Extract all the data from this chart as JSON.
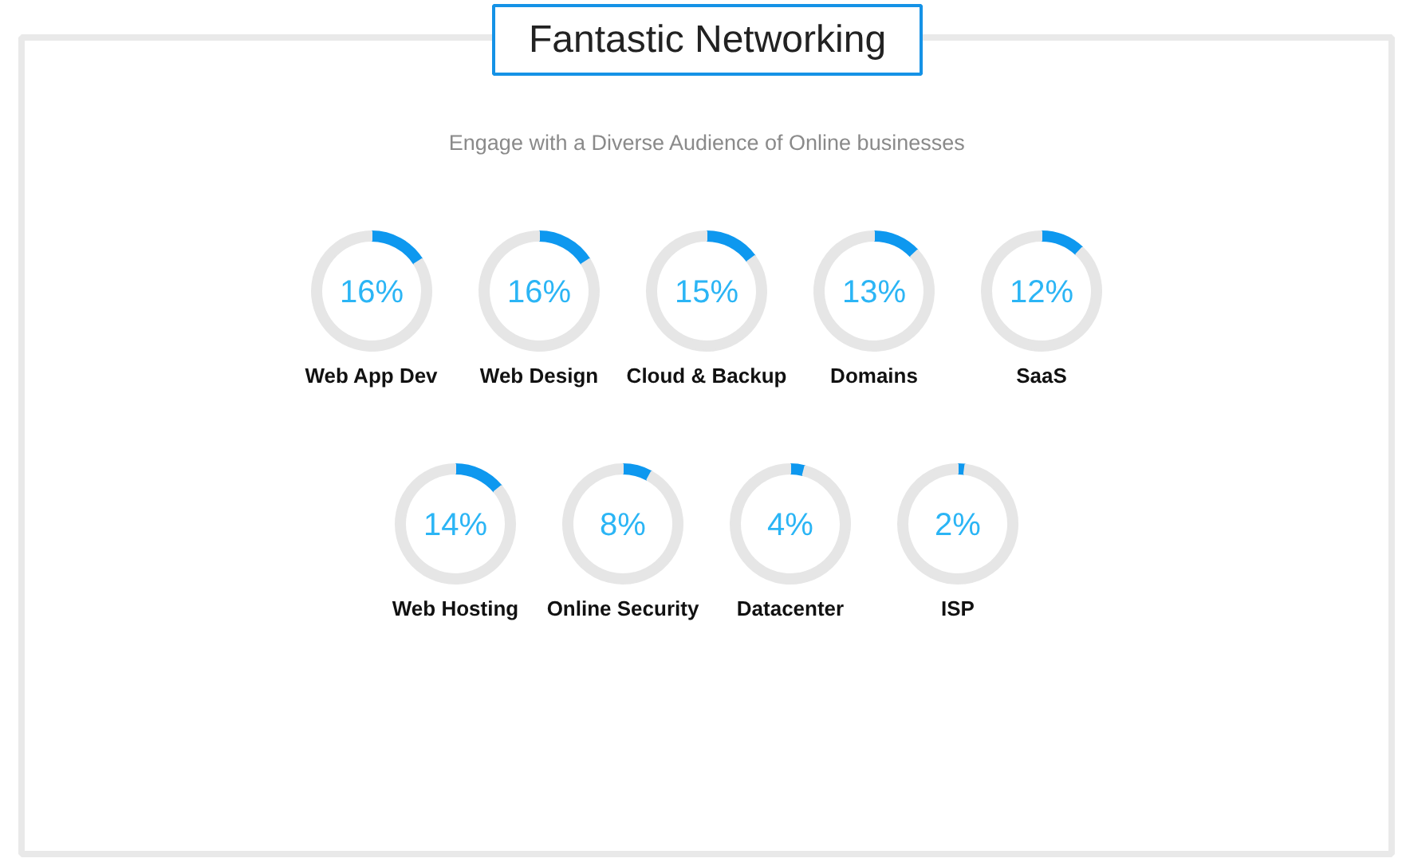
{
  "chart_data": [
    {
      "type": "other",
      "title": "Fantastic Networking",
      "subtitle": "Engage with a Diverse Audience of Online businesses"
    },
    {
      "type": "donut",
      "title": "Web App Dev",
      "categories": [
        null,
        null
      ],
      "values": [
        16,
        84
      ],
      "colors": [
        "#0e98ef",
        "#e6e6e6"
      ],
      "annotations": [
        "16%"
      ]
    },
    {
      "type": "donut",
      "title": "Web Design",
      "categories": [
        null,
        null
      ],
      "values": [
        16,
        84
      ],
      "colors": [
        "#0e98ef",
        "#e6e6e6"
      ],
      "annotations": [
        "16%"
      ]
    },
    {
      "type": "donut",
      "title": "Cloud & Backup",
      "categories": [
        null,
        null
      ],
      "values": [
        15,
        85
      ],
      "colors": [
        "#0e98ef",
        "#e6e6e6"
      ],
      "annotations": [
        "15%"
      ]
    },
    {
      "type": "donut",
      "title": "Domains",
      "categories": [
        null,
        null
      ],
      "values": [
        13,
        87
      ],
      "colors": [
        "#0e98ef",
        "#e6e6e6"
      ],
      "annotations": [
        "13%"
      ]
    },
    {
      "type": "donut",
      "title": "SaaS",
      "categories": [
        null,
        null
      ],
      "values": [
        12,
        88
      ],
      "colors": [
        "#0e98ef",
        "#e6e6e6"
      ],
      "annotations": [
        "12%"
      ]
    },
    {
      "type": "donut",
      "title": "Web Hosting",
      "categories": [
        null,
        null
      ],
      "values": [
        14,
        86
      ],
      "colors": [
        "#0e98ef",
        "#e6e6e6"
      ],
      "annotations": [
        "14%"
      ]
    },
    {
      "type": "donut",
      "title": "Online Security",
      "categories": [
        null,
        null
      ],
      "values": [
        8,
        92
      ],
      "colors": [
        "#0e98ef",
        "#e6e6e6"
      ],
      "annotations": [
        "8%"
      ]
    },
    {
      "type": "donut",
      "title": "Datacenter",
      "categories": [
        null,
        null
      ],
      "values": [
        4,
        96
      ],
      "colors": [
        "#0e98ef",
        "#e6e6e6"
      ],
      "annotations": [
        "4%"
      ]
    },
    {
      "type": "donut",
      "title": "ISP",
      "categories": [
        null,
        null
      ],
      "values": [
        2,
        98
      ],
      "colors": [
        "#0e98ef",
        "#e6e6e6"
      ],
      "annotations": [
        "2%"
      ]
    }
  ]
}
